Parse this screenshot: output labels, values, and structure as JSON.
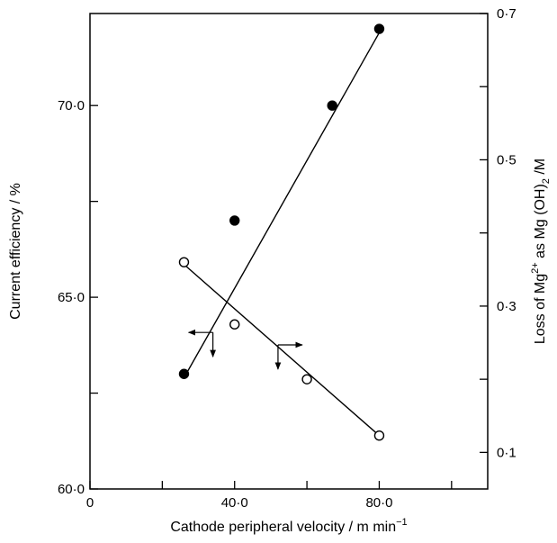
{
  "chart_data": {
    "type": "scatter",
    "xlabel": "Cathode peripheral velocity / m min",
    "xlabel_superscript": "−1",
    "ylabel_left": "Current efficiency / %",
    "ylabel_right_parts": [
      "Loss of Mg",
      "2+",
      " as Mg (OH)",
      "2",
      " /M"
    ],
    "xlim": [
      0,
      110
    ],
    "ylim_left": [
      60,
      72.4
    ],
    "ylim_right": [
      0.05,
      0.7
    ],
    "x_ticks": [
      0,
      20,
      40,
      60,
      80,
      100
    ],
    "x_tick_labels": [
      "0",
      "",
      "40·0",
      "",
      "80·0",
      ""
    ],
    "y_left_ticks": [
      60,
      62.5,
      65,
      67.5,
      70
    ],
    "y_left_tick_labels": [
      "60·0",
      "",
      "65·0",
      "",
      "70·0"
    ],
    "y_right_ticks": [
      0.1,
      0.2,
      0.3,
      0.4,
      0.5,
      0.6,
      0.7
    ],
    "y_right_tick_labels": [
      "0·1",
      "",
      "0·3",
      "",
      "0·5",
      "",
      "0·7"
    ],
    "grid": false,
    "series": [
      {
        "marker": "filled-circle",
        "axis": "left",
        "x": [
          26,
          40,
          67,
          80
        ],
        "y": [
          63.0,
          67.0,
          70.0,
          72.0
        ],
        "fit": [
          [
            26,
            62.9
          ],
          [
            80,
            71.9
          ]
        ]
      },
      {
        "marker": "open-circle",
        "axis": "right",
        "x": [
          26,
          40,
          60,
          80
        ],
        "y": [
          0.36,
          0.275,
          0.2,
          0.123
        ],
        "fit": [
          [
            26,
            0.357
          ],
          [
            80,
            0.123
          ]
        ]
      }
    ],
    "annotations": [
      {
        "type": "axis-arrow",
        "points_to": "left",
        "at": [
          34,
          0.264
        ]
      },
      {
        "type": "axis-arrow",
        "points_to": "right",
        "at": [
          52,
          0.247
        ]
      }
    ]
  }
}
